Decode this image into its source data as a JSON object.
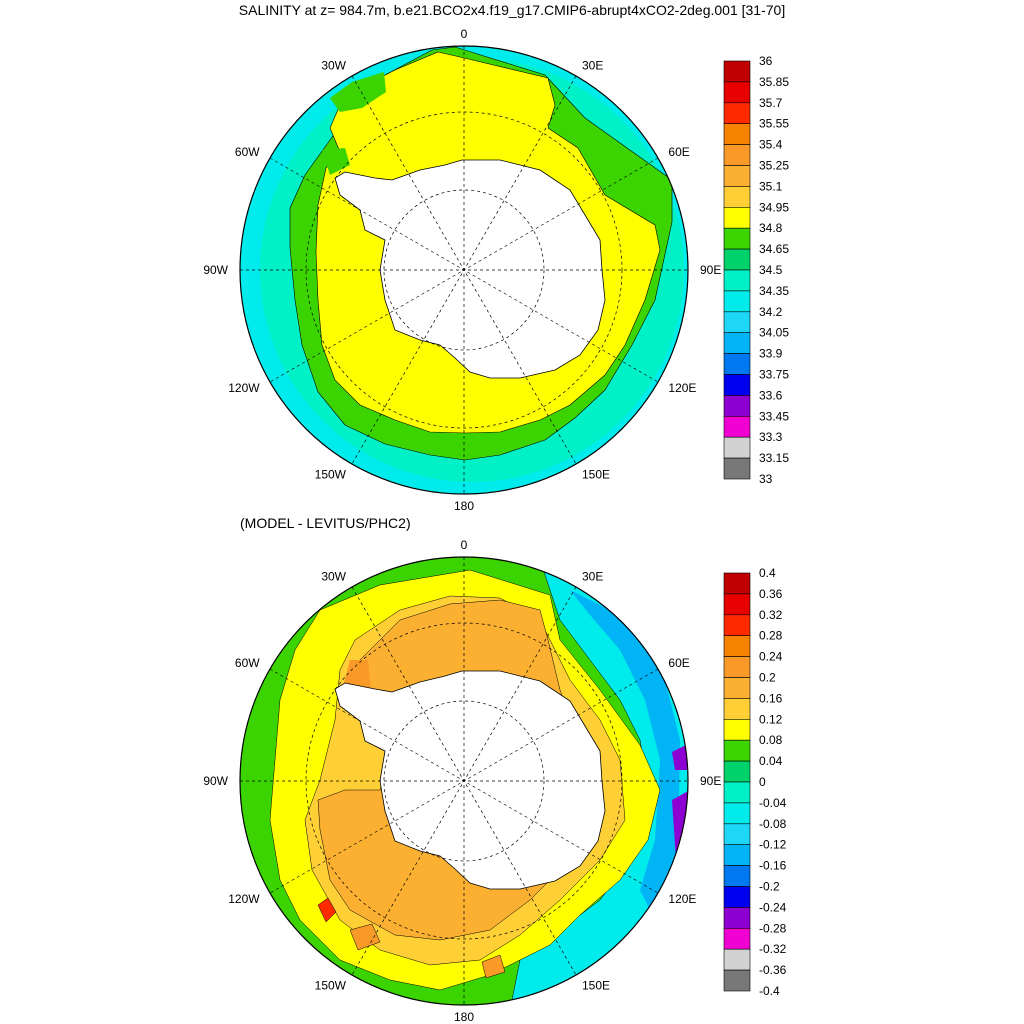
{
  "figure": {
    "title": "SALINITY at z= 984.7m, b.e21.BCO2x4.f19_g17.CMIP6-abrupt4xCO2-2deg.001 [31-70]",
    "subtitle": "(MODEL - LEVITUS/PHC2)"
  },
  "maps": [
    {
      "name": "salinity",
      "longitude_labels": [
        "0",
        "30E",
        "60E",
        "90E",
        "120E",
        "150E",
        "180",
        "150W",
        "120W",
        "90W",
        "60W",
        "30W"
      ],
      "colorbar": {
        "levels": [
          "36",
          "35.85",
          "35.7",
          "35.55",
          "35.4",
          "35.25",
          "35.1",
          "34.95",
          "34.8",
          "34.65",
          "34.5",
          "34.35",
          "34.2",
          "34.05",
          "33.9",
          "33.75",
          "33.6",
          "33.45",
          "33.3",
          "33.15",
          "33"
        ],
        "colors": [
          "#c00000",
          "#e80000",
          "#ff2a00",
          "#f58300",
          "#f99a28",
          "#fcb032",
          "#ffd035",
          "#ffff00",
          "#3bd400",
          "#00d26b",
          "#00f0c8",
          "#00ecec",
          "#1ed6f5",
          "#00b4f5",
          "#0078f0",
          "#0000f0",
          "#8c00d2",
          "#f000d2",
          "#d2d2d2",
          "#787878"
        ]
      }
    },
    {
      "name": "difference",
      "longitude_labels": [
        "0",
        "30E",
        "60E",
        "90E",
        "120E",
        "150E",
        "180",
        "150W",
        "120W",
        "90W",
        "60W",
        "30W"
      ],
      "colorbar": {
        "levels": [
          "0.4",
          "0.36",
          "0.32",
          "0.28",
          "0.24",
          "0.2",
          "0.16",
          "0.12",
          "0.08",
          "0.04",
          "0",
          "-0.04",
          "-0.08",
          "-0.12",
          "-0.16",
          "-0.2",
          "-0.24",
          "-0.28",
          "-0.32",
          "-0.36",
          "-0.4"
        ],
        "colors": [
          "#c00000",
          "#e80000",
          "#ff2a00",
          "#f58300",
          "#f99a28",
          "#fcb032",
          "#ffd035",
          "#ffff00",
          "#3bd400",
          "#00d26b",
          "#00f0c8",
          "#00ecec",
          "#1ed6f5",
          "#00b4f5",
          "#0078f0",
          "#0000f0",
          "#8c00d2",
          "#f000d2",
          "#d2d2d2",
          "#787878"
        ]
      }
    }
  ]
}
